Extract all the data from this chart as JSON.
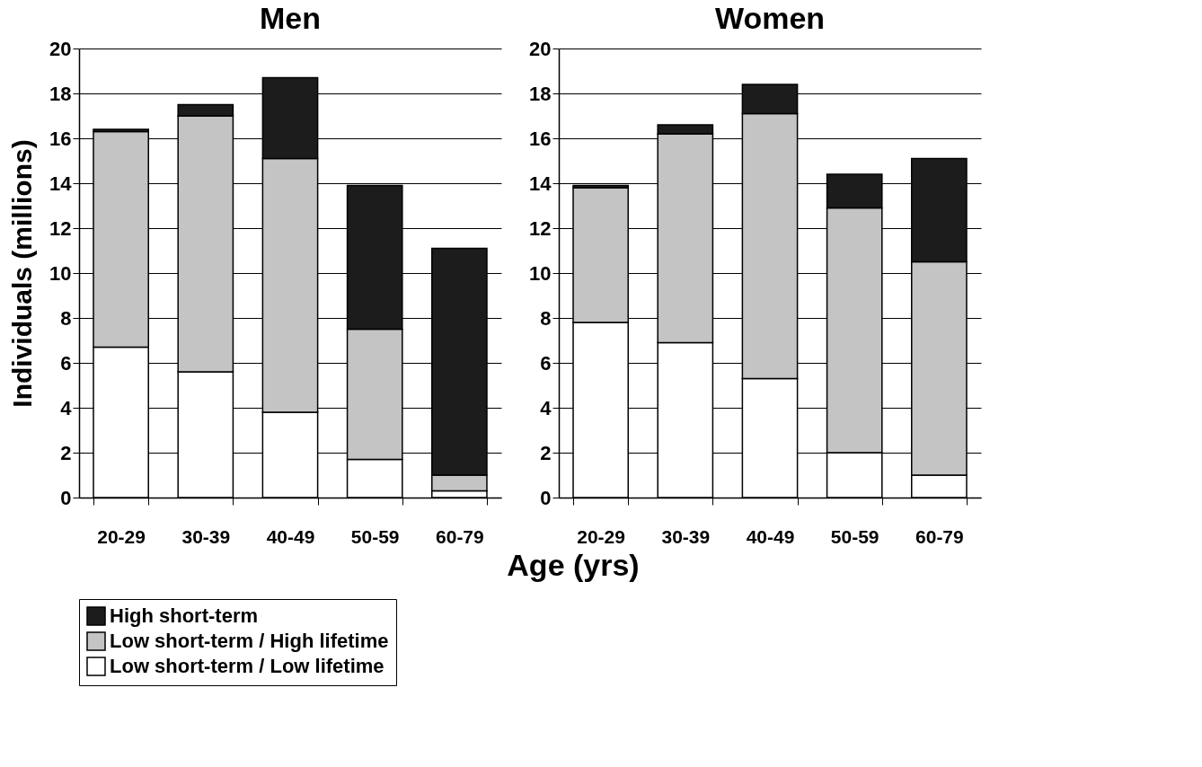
{
  "chart_data": [
    {
      "type": "bar",
      "title": "Men",
      "ylabel": "Individuals (millions)",
      "xlabel": "Age (yrs)",
      "categories": [
        "20-29",
        "30-39",
        "40-49",
        "50-59",
        "60-79"
      ],
      "stacked": true,
      "ylim": [
        0,
        20
      ],
      "yticks": [
        0,
        2,
        4,
        6,
        8,
        10,
        12,
        14,
        16,
        18,
        20
      ],
      "grid": "y",
      "legend": "bottom",
      "series": [
        {
          "name": "Low short-term / Low lifetime",
          "color": "#ffffff",
          "values": [
            6.7,
            5.6,
            3.8,
            1.7,
            0.3
          ]
        },
        {
          "name": "Low short-term / High lifetime",
          "color": "#c4c4c4",
          "values": [
            9.6,
            11.4,
            11.3,
            5.8,
            0.7
          ]
        },
        {
          "name": "High short-term",
          "color": "#1c1c1c",
          "values": [
            0.1,
            0.5,
            3.6,
            6.4,
            10.1
          ]
        }
      ]
    },
    {
      "type": "bar",
      "title": "Women",
      "categories": [
        "20-29",
        "30-39",
        "40-49",
        "50-59",
        "60-79"
      ],
      "stacked": true,
      "ylim": [
        0,
        20
      ],
      "yticks": [
        0,
        2,
        4,
        6,
        8,
        10,
        12,
        14,
        16,
        18,
        20
      ],
      "grid": "y",
      "legend": "bottom",
      "series": [
        {
          "name": "Low short-term / Low lifetime",
          "color": "#ffffff",
          "values": [
            7.8,
            6.9,
            5.3,
            2.0,
            1.0
          ]
        },
        {
          "name": "Low short-term / High lifetime",
          "color": "#c4c4c4",
          "values": [
            6.0,
            9.3,
            11.8,
            10.9,
            9.5
          ]
        },
        {
          "name": "High short-term",
          "color": "#1c1c1c",
          "values": [
            0.1,
            0.4,
            1.3,
            1.5,
            4.6
          ]
        }
      ]
    }
  ]
}
